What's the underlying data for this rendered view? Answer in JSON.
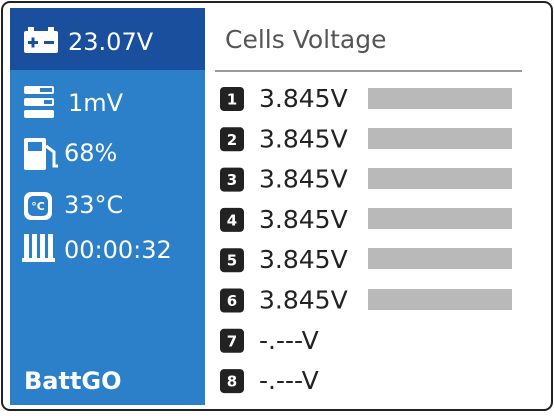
{
  "status": {
    "pack_voltage": "23.07V",
    "delta": "1mV",
    "charge": "68%",
    "temperature": "33°C",
    "timer": "00:00:32",
    "brand": "BattGO"
  },
  "cells": {
    "title": "Cells Voltage",
    "rows": [
      {
        "index": "1",
        "voltage": "3.845V"
      },
      {
        "index": "2",
        "voltage": "3.845V"
      },
      {
        "index": "3",
        "voltage": "3.845V"
      },
      {
        "index": "4",
        "voltage": "3.845V"
      },
      {
        "index": "5",
        "voltage": "3.845V"
      },
      {
        "index": "6",
        "voltage": "3.845V"
      },
      {
        "index": "7",
        "voltage": "-.---V"
      },
      {
        "index": "8",
        "voltage": "-.---V"
      }
    ]
  }
}
